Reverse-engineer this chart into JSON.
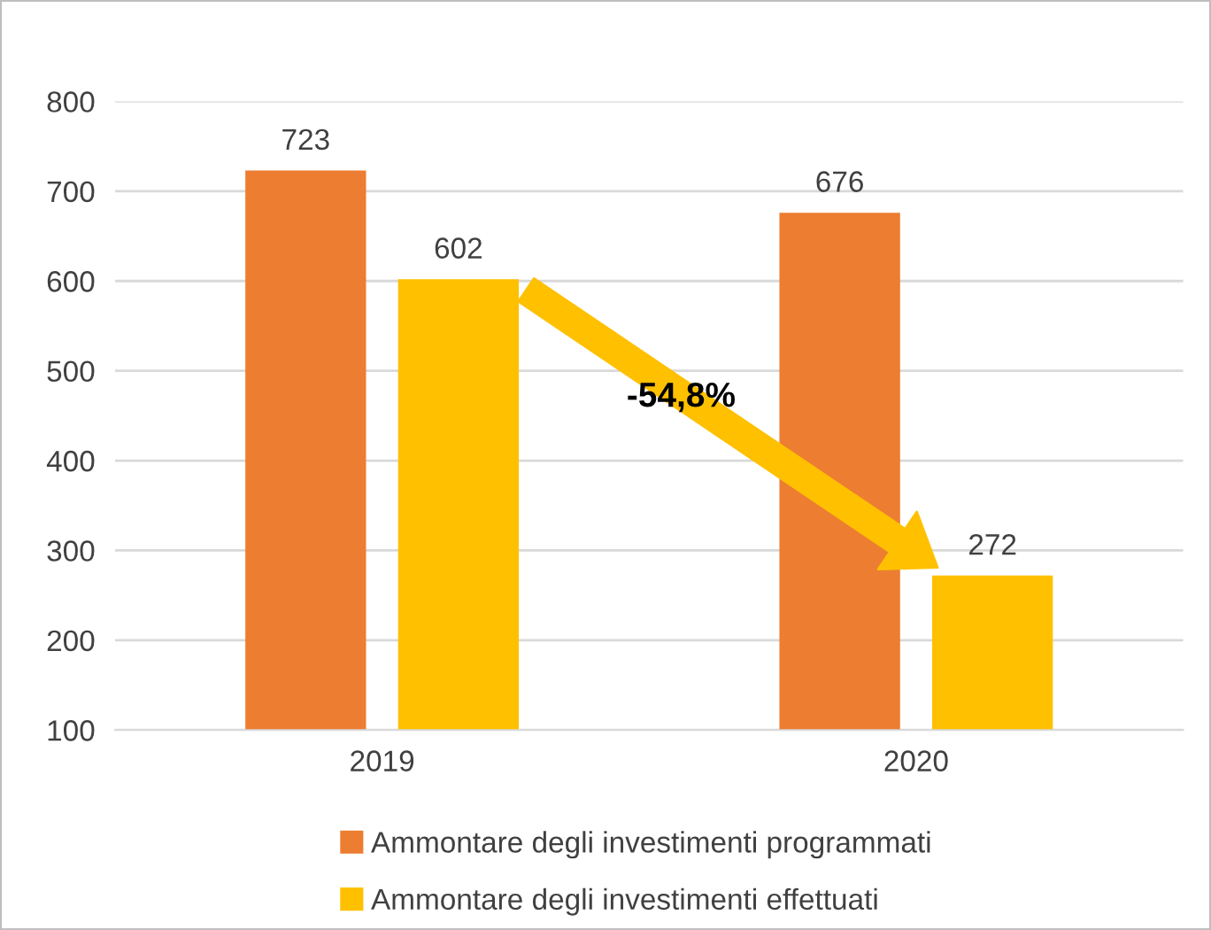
{
  "chart_data": {
    "type": "bar",
    "categories": [
      "2019",
      "2020"
    ],
    "series": [
      {
        "name": "Ammontare degli investimenti programmati",
        "color": "#ed7d31",
        "values": [
          723,
          676
        ]
      },
      {
        "name": "Ammontare degli investimenti effettuati",
        "color": "#ffc000",
        "values": [
          602,
          272
        ]
      }
    ],
    "ylim": [
      100,
      800
    ],
    "yticks": [
      100,
      200,
      300,
      400,
      500,
      600,
      700,
      800
    ],
    "grid": "y",
    "legend": "bottom",
    "data_labels": true,
    "annotations": [
      "-54,8%"
    ]
  }
}
